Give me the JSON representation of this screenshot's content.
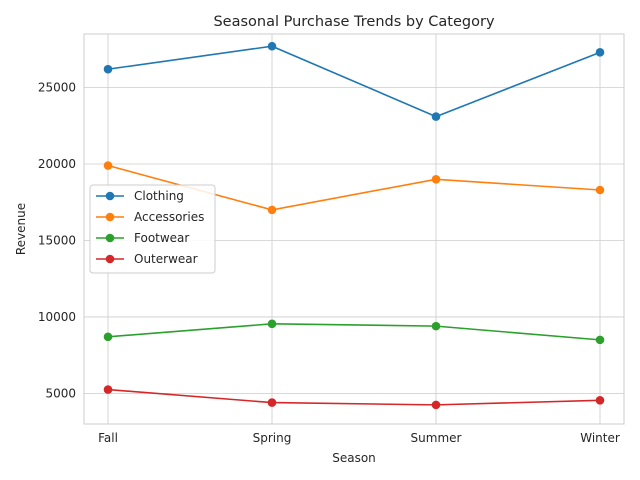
{
  "chart_data": {
    "type": "line",
    "title": "Seasonal Purchase Trends by Category",
    "xlabel": "Season",
    "ylabel": "Revenue",
    "categories": [
      "Fall",
      "Spring",
      "Summer",
      "Winter"
    ],
    "ylim": [
      3000,
      28500
    ],
    "yticks": [
      5000,
      10000,
      15000,
      20000,
      25000
    ],
    "ytick_labels": [
      "5000",
      "10000",
      "15000",
      "20000",
      "25000"
    ],
    "grid": true,
    "legend_position": "center-left",
    "series": [
      {
        "name": "Clothing",
        "color": "#1f77b4",
        "values": [
          26200,
          27700,
          23100,
          27300
        ]
      },
      {
        "name": "Accessories",
        "color": "#ff7f0e",
        "values": [
          19900,
          17000,
          19000,
          18300
        ]
      },
      {
        "name": "Footwear",
        "color": "#2ca02c",
        "values": [
          8700,
          9550,
          9400,
          8500
        ]
      },
      {
        "name": "Outerwear",
        "color": "#d62728",
        "values": [
          5250,
          4400,
          4250,
          4550
        ]
      }
    ]
  }
}
